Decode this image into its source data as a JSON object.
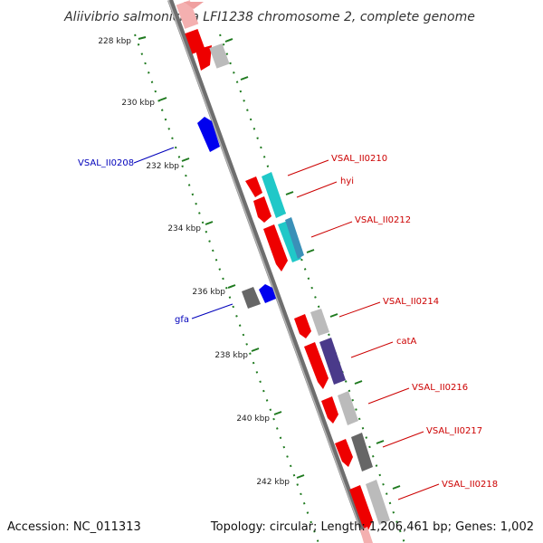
{
  "title": "Aliivibrio salmonicida LFI1238 chromosome 2, complete genome",
  "footer": {
    "accession": "Accession: NC_011313",
    "summary": "Topology: circular; Length: 1,206,461 bp; Genes: 1,002"
  },
  "colors": {
    "backbone": "#8a8a8a",
    "tick": "#1f7a1f",
    "forward_label": "#cc0000",
    "reverse_label": "#0000bb",
    "red_gene": "#ee0000",
    "blue_gene": "#0000ee",
    "cyan_gene": "#20c8c8",
    "teal_gene": "#3a90b8",
    "navy_gene": "#4a3a8a",
    "gray_gene": "#b8b8b8",
    "darkgray_gene": "#666666"
  },
  "ticks": [
    {
      "label": "228 kbp",
      "kbp": 228
    },
    {
      "label": "230 kbp",
      "kbp": 230
    },
    {
      "label": "232 kbp",
      "kbp": 232
    },
    {
      "label": "234 kbp",
      "kbp": 234
    },
    {
      "label": "236 kbp",
      "kbp": 236
    },
    {
      "label": "238 kbp",
      "kbp": 238
    },
    {
      "label": "240 kbp",
      "kbp": 240
    },
    {
      "label": "242 kbp",
      "kbp": 242
    }
  ],
  "genes": [
    {
      "name": "VSAL_II0208",
      "strand": "reverse",
      "color": "blue_gene"
    },
    {
      "name": "VSAL_II0210",
      "strand": "forward",
      "color": "red_gene"
    },
    {
      "name": "hyi",
      "strand": "forward",
      "color": "red_gene"
    },
    {
      "name": "VSAL_II0212",
      "strand": "forward",
      "color": "red_gene"
    },
    {
      "name": "gfa",
      "strand": "reverse",
      "color": "blue_gene"
    },
    {
      "name": "VSAL_II0214",
      "strand": "forward",
      "color": "red_gene"
    },
    {
      "name": "catA",
      "strand": "forward",
      "color": "red_gene"
    },
    {
      "name": "VSAL_II0216",
      "strand": "forward",
      "color": "red_gene"
    },
    {
      "name": "VSAL_II0217",
      "strand": "forward",
      "color": "red_gene"
    },
    {
      "name": "VSAL_II0218",
      "strand": "forward",
      "color": "red_gene"
    }
  ]
}
